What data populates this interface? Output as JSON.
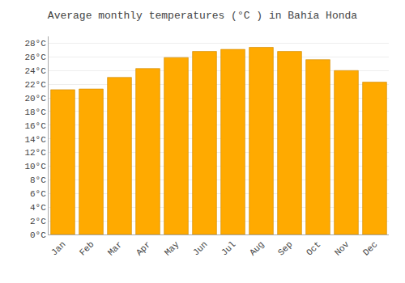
{
  "chart_data": {
    "type": "bar",
    "title": "Average monthly temperatures (°C ) in Bahía Honda",
    "categories": [
      "Jan",
      "Feb",
      "Mar",
      "Apr",
      "May",
      "Jun",
      "Jul",
      "Aug",
      "Sep",
      "Oct",
      "Nov",
      "Dec"
    ],
    "values": [
      21.2,
      21.3,
      23.0,
      24.3,
      25.9,
      26.8,
      27.1,
      27.4,
      26.8,
      25.6,
      24.0,
      22.3
    ],
    "color": "#FFAA00",
    "ylim": [
      0,
      29
    ],
    "yticks": [
      {
        "value": 0,
        "label": "0°C"
      },
      {
        "value": 2,
        "label": "2°C"
      },
      {
        "value": 4,
        "label": "4°C"
      },
      {
        "value": 6,
        "label": "6°C"
      },
      {
        "value": 8,
        "label": "8°C"
      },
      {
        "value": 10,
        "label": "10°C"
      },
      {
        "value": 12,
        "label": "12°C"
      },
      {
        "value": 14,
        "label": "14°C"
      },
      {
        "value": 16,
        "label": "16°C"
      },
      {
        "value": 18,
        "label": "18°C"
      },
      {
        "value": 20,
        "label": "20°C"
      },
      {
        "value": 22,
        "label": "22°C"
      },
      {
        "value": 24,
        "label": "24°C"
      },
      {
        "value": 26,
        "label": "26°C"
      },
      {
        "value": 28,
        "label": "28°C"
      }
    ],
    "grid": true
  }
}
